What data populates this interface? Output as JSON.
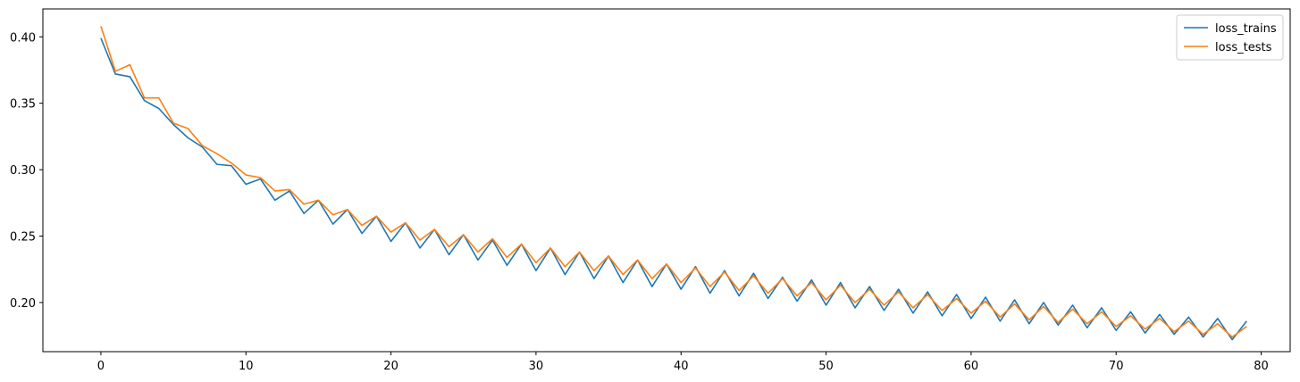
{
  "chart_data": {
    "type": "line",
    "title": "",
    "xlabel": "",
    "ylabel": "",
    "xlim": [
      -4,
      82
    ],
    "ylim": [
      0.163,
      0.421
    ],
    "x_ticks": [
      0,
      10,
      20,
      30,
      40,
      50,
      60,
      70,
      80
    ],
    "y_ticks": [
      0.2,
      0.25,
      0.3,
      0.35,
      0.4
    ],
    "x_tick_labels": [
      "0",
      "10",
      "20",
      "30",
      "40",
      "50",
      "60",
      "70",
      "80"
    ],
    "y_tick_labels": [
      "0.20",
      "0.25",
      "0.30",
      "0.35",
      "0.40"
    ],
    "grid": false,
    "legend_position": "top-right",
    "x": [
      0,
      1,
      2,
      3,
      4,
      5,
      6,
      7,
      8,
      9,
      10,
      11,
      12,
      13,
      14,
      15,
      16,
      17,
      18,
      19,
      20,
      21,
      22,
      23,
      24,
      25,
      26,
      27,
      28,
      29,
      30,
      31,
      32,
      33,
      34,
      35,
      36,
      37,
      38,
      39,
      40,
      41,
      42,
      43,
      44,
      45,
      46,
      47,
      48,
      49,
      50,
      51,
      52,
      53,
      54,
      55,
      56,
      57,
      58,
      59,
      60,
      61,
      62,
      63,
      64,
      65,
      66,
      67,
      68,
      69,
      70,
      71,
      72,
      73,
      74,
      75,
      76,
      77,
      78,
      79
    ],
    "series": [
      {
        "name": "loss_trains",
        "color": "#1f77b4",
        "values": [
          0.399,
          0.372,
          0.37,
          0.352,
          0.346,
          0.334,
          0.324,
          0.317,
          0.304,
          0.303,
          0.289,
          0.293,
          0.277,
          0.284,
          0.267,
          0.277,
          0.259,
          0.27,
          0.252,
          0.265,
          0.246,
          0.26,
          0.241,
          0.255,
          0.236,
          0.251,
          0.232,
          0.247,
          0.228,
          0.244,
          0.224,
          0.241,
          0.221,
          0.238,
          0.218,
          0.235,
          0.215,
          0.232,
          0.212,
          0.229,
          0.21,
          0.227,
          0.207,
          0.224,
          0.205,
          0.222,
          0.203,
          0.219,
          0.201,
          0.217,
          0.198,
          0.215,
          0.196,
          0.212,
          0.194,
          0.21,
          0.192,
          0.208,
          0.19,
          0.206,
          0.188,
          0.204,
          0.186,
          0.202,
          0.184,
          0.2,
          0.183,
          0.198,
          0.181,
          0.196,
          0.179,
          0.193,
          0.177,
          0.191,
          0.176,
          0.189,
          0.174,
          0.188,
          0.172,
          0.186
        ]
      },
      {
        "name": "loss_tests",
        "color": "#ff7f0e",
        "values": [
          0.408,
          0.374,
          0.379,
          0.354,
          0.354,
          0.335,
          0.331,
          0.318,
          0.312,
          0.305,
          0.296,
          0.294,
          0.284,
          0.285,
          0.274,
          0.277,
          0.266,
          0.27,
          0.258,
          0.265,
          0.253,
          0.26,
          0.247,
          0.255,
          0.242,
          0.251,
          0.238,
          0.248,
          0.234,
          0.244,
          0.23,
          0.241,
          0.227,
          0.238,
          0.224,
          0.235,
          0.221,
          0.232,
          0.218,
          0.229,
          0.215,
          0.226,
          0.212,
          0.223,
          0.209,
          0.22,
          0.207,
          0.218,
          0.205,
          0.215,
          0.202,
          0.213,
          0.2,
          0.21,
          0.198,
          0.208,
          0.196,
          0.206,
          0.194,
          0.203,
          0.192,
          0.201,
          0.189,
          0.199,
          0.187,
          0.197,
          0.185,
          0.195,
          0.184,
          0.193,
          0.182,
          0.19,
          0.18,
          0.188,
          0.178,
          0.186,
          0.176,
          0.184,
          0.174,
          0.182
        ]
      }
    ]
  }
}
